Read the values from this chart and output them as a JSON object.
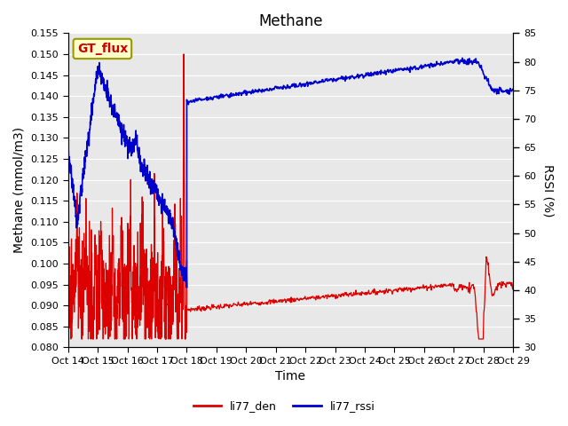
{
  "title": "Methane",
  "ylabel_left": "Methane (mmol/m3)",
  "ylabel_right": "RSSI (%)",
  "xlabel": "Time",
  "ylim_left": [
    0.08,
    0.155
  ],
  "ylim_right": [
    30,
    85
  ],
  "xtick_labels": [
    "Oct 14",
    "Oct 15",
    "Oct 16",
    "Oct 17",
    "Oct 18",
    "Oct 19",
    "Oct 20",
    "Oct 21",
    "Oct 22",
    "Oct 23",
    "Oct 24",
    "Oct 25",
    "Oct 26",
    "Oct 27",
    "Oct 28",
    "Oct 29"
  ],
  "annotation_text": "GT_flux",
  "annotation_color": "#cc0000",
  "annotation_bg": "#ffffcc",
  "annotation_border": "#999900",
  "line_red_color": "#dd0000",
  "line_blue_color": "#0000cc",
  "legend_labels": [
    "li77_den",
    "li77_rssi"
  ],
  "bg_color": "#e8e8e8",
  "title_fontsize": 12,
  "axis_fontsize": 10,
  "tick_fontsize": 8,
  "legend_fontsize": 9
}
